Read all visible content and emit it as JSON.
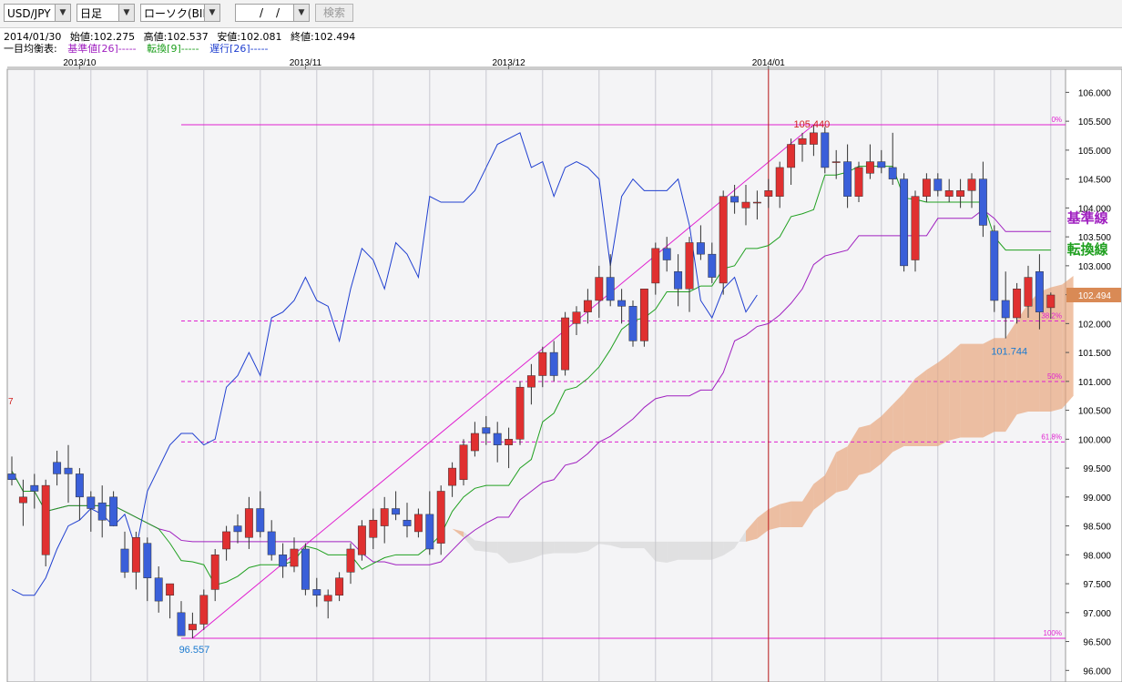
{
  "toolbar": {
    "pair": "USD/JPY",
    "period": "日足",
    "price_type": "ローソク(BID)",
    "date_sep1": "/",
    "date_sep2": "/",
    "search_label": "検索"
  },
  "ohlc": {
    "date": "2014/01/30",
    "open": "始値:102.275",
    "high": "高値:102.537",
    "low": "安値:102.081",
    "close": "終値:102.494"
  },
  "legend": {
    "title": "一目均衡表:",
    "kijun": "基準値[26]-----",
    "tenkan": "転換[9]-----",
    "chikou": "遅行[26]-----"
  },
  "colors": {
    "up": "#e03030",
    "down": "#3a5fd9",
    "kijun": "#a020c0",
    "tenkan": "#20a020",
    "chikou": "#1f3fd0",
    "fib": "#e020d0",
    "cloud": "#e8a274",
    "cloud_grey": "#c8c8c8",
    "last_price_bg": "#d98a55"
  },
  "chart_data": {
    "type": "candlestick",
    "title": "",
    "ylim": [
      95.8,
      106.4
    ],
    "y_ticks": [
      "106.000",
      "105.500",
      "105.000",
      "104.500",
      "104.000",
      "103.500",
      "103.000",
      "102.500",
      "102.000",
      "101.500",
      "101.000",
      "100.500",
      "100.000",
      "99.500",
      "99.000",
      "98.500",
      "98.000",
      "97.500",
      "97.000",
      "96.500",
      "96.000"
    ],
    "y_tick_values": [
      106,
      105.5,
      105,
      104.5,
      104,
      103.5,
      103,
      102.5,
      102,
      101.5,
      101,
      100.5,
      100,
      99.5,
      99,
      98.5,
      98,
      97.5,
      97,
      96.5,
      96
    ],
    "months": [
      {
        "label": "2013/10",
        "index": 6
      },
      {
        "label": "2013/11",
        "index": 26
      },
      {
        "label": "2013/12",
        "index": 44
      },
      {
        "label": "2014/01",
        "index": 67
      }
    ],
    "last_price": "102.494",
    "annotations": {
      "high": "105.440",
      "low": "96.557",
      "recent_low": "101.744",
      "left_marker": "7",
      "kijun_label": "基準線",
      "tenkan_label": "転換線"
    },
    "fibonacci": [
      {
        "label": "0%",
        "value": 105.44
      },
      {
        "label": "38.2%",
        "value": 102.045
      },
      {
        "label": "50%",
        "value": 100.998
      },
      {
        "label": "61.8%",
        "value": 99.952
      },
      {
        "label": "100%",
        "value": 96.557
      }
    ],
    "candles": [
      [
        99.4,
        99.7,
        99.2,
        99.3
      ],
      [
        98.9,
        99.3,
        98.5,
        99.0
      ],
      [
        99.2,
        99.4,
        98.8,
        99.1
      ],
      [
        98.0,
        99.3,
        97.8,
        99.2
      ],
      [
        99.6,
        99.8,
        99.2,
        99.4
      ],
      [
        99.5,
        99.9,
        98.9,
        99.4
      ],
      [
        99.4,
        99.5,
        98.6,
        99.0
      ],
      [
        99.0,
        99.1,
        98.4,
        98.8
      ],
      [
        98.9,
        99.2,
        98.3,
        98.6
      ],
      [
        99.0,
        99.1,
        98.5,
        98.5
      ],
      [
        98.1,
        98.4,
        97.6,
        97.7
      ],
      [
        97.7,
        98.4,
        97.4,
        98.3
      ],
      [
        98.2,
        98.3,
        97.2,
        97.6
      ],
      [
        97.6,
        97.8,
        97.0,
        97.2
      ],
      [
        97.3,
        97.5,
        96.9,
        97.5
      ],
      [
        97.0,
        97.2,
        96.6,
        96.6
      ],
      [
        96.7,
        97.0,
        96.557,
        96.8
      ],
      [
        96.8,
        97.4,
        96.7,
        97.3
      ],
      [
        97.4,
        98.1,
        97.2,
        98.0
      ],
      [
        98.1,
        98.5,
        97.9,
        98.4
      ],
      [
        98.5,
        98.7,
        98.2,
        98.4
      ],
      [
        98.3,
        99.0,
        98.1,
        98.8
      ],
      [
        98.8,
        99.1,
        98.3,
        98.4
      ],
      [
        98.4,
        98.6,
        97.9,
        98.0
      ],
      [
        98.0,
        98.2,
        97.6,
        97.8
      ],
      [
        97.8,
        98.3,
        97.7,
        98.1
      ],
      [
        98.1,
        98.2,
        97.3,
        97.4
      ],
      [
        97.4,
        97.6,
        97.1,
        97.3
      ],
      [
        97.2,
        97.4,
        96.9,
        97.3
      ],
      [
        97.3,
        97.7,
        97.2,
        97.6
      ],
      [
        97.7,
        98.2,
        97.5,
        98.1
      ],
      [
        98.0,
        98.6,
        97.9,
        98.5
      ],
      [
        98.3,
        98.8,
        98.1,
        98.6
      ],
      [
        98.5,
        99.0,
        98.2,
        98.8
      ],
      [
        98.8,
        99.1,
        98.6,
        98.7
      ],
      [
        98.6,
        98.9,
        98.3,
        98.5
      ],
      [
        98.4,
        98.8,
        98.3,
        98.7
      ],
      [
        98.7,
        99.1,
        98.0,
        98.1
      ],
      [
        98.2,
        99.2,
        98.0,
        99.1
      ],
      [
        99.2,
        99.6,
        99.0,
        99.5
      ],
      [
        99.3,
        100.0,
        99.2,
        99.9
      ],
      [
        99.8,
        100.3,
        99.7,
        100.1
      ],
      [
        100.2,
        100.4,
        99.9,
        100.1
      ],
      [
        100.1,
        100.3,
        99.6,
        99.9
      ],
      [
        99.9,
        100.2,
        99.5,
        100.0
      ],
      [
        100.0,
        101.0,
        99.9,
        100.9
      ],
      [
        100.9,
        101.3,
        100.6,
        101.1
      ],
      [
        101.1,
        101.6,
        100.9,
        101.5
      ],
      [
        101.5,
        101.7,
        101.0,
        101.1
      ],
      [
        101.2,
        102.2,
        101.1,
        102.1
      ],
      [
        102.0,
        102.3,
        101.8,
        102.2
      ],
      [
        102.2,
        102.6,
        102.0,
        102.4
      ],
      [
        102.4,
        103.0,
        102.1,
        102.8
      ],
      [
        102.8,
        103.2,
        102.3,
        102.4
      ],
      [
        102.4,
        102.6,
        102.0,
        102.3
      ],
      [
        102.3,
        102.4,
        101.6,
        101.7
      ],
      [
        101.7,
        102.6,
        101.6,
        102.6
      ],
      [
        102.7,
        103.4,
        102.5,
        103.3
      ],
      [
        103.3,
        103.5,
        102.9,
        103.1
      ],
      [
        102.9,
        103.2,
        102.3,
        102.6
      ],
      [
        102.6,
        103.5,
        102.2,
        103.4
      ],
      [
        103.4,
        103.7,
        103.1,
        103.2
      ],
      [
        103.2,
        103.4,
        102.7,
        102.8
      ],
      [
        102.7,
        104.3,
        102.5,
        104.2
      ],
      [
        104.2,
        104.4,
        103.9,
        104.1
      ],
      [
        104.0,
        104.4,
        103.7,
        104.1
      ],
      [
        104.1,
        104.3,
        103.8,
        104.1
      ],
      [
        104.2,
        104.5,
        104.0,
        104.3
      ],
      [
        104.2,
        104.8,
        104.0,
        104.7
      ],
      [
        104.7,
        105.2,
        104.4,
        105.1
      ],
      [
        105.1,
        105.3,
        104.8,
        105.2
      ],
      [
        105.1,
        105.44,
        104.9,
        105.3
      ],
      [
        105.3,
        105.4,
        104.6,
        104.7
      ],
      [
        104.8,
        105.0,
        104.5,
        104.8
      ],
      [
        104.8,
        105.1,
        104.0,
        104.2
      ],
      [
        104.2,
        104.8,
        104.1,
        104.7
      ],
      [
        104.6,
        105.1,
        104.5,
        104.8
      ],
      [
        104.8,
        105.0,
        104.6,
        104.7
      ],
      [
        104.7,
        105.3,
        104.4,
        104.5
      ],
      [
        104.5,
        104.6,
        102.9,
        103.0
      ],
      [
        103.1,
        104.3,
        102.9,
        104.2
      ],
      [
        104.2,
        104.6,
        104.1,
        104.5
      ],
      [
        104.5,
        104.6,
        104.2,
        104.3
      ],
      [
        104.2,
        104.5,
        104.1,
        104.3
      ],
      [
        104.2,
        104.5,
        104.0,
        104.3
      ],
      [
        104.3,
        104.6,
        104.0,
        104.5
      ],
      [
        104.5,
        104.8,
        103.5,
        103.7
      ],
      [
        103.6,
        103.7,
        102.2,
        102.4
      ],
      [
        102.4,
        102.9,
        101.744,
        102.1
      ],
      [
        102.1,
        102.7,
        102.0,
        102.6
      ],
      [
        102.3,
        103.0,
        102.1,
        102.8
      ],
      [
        102.9,
        103.2,
        101.9,
        102.2
      ],
      [
        102.275,
        102.537,
        102.081,
        102.494
      ]
    ]
  }
}
